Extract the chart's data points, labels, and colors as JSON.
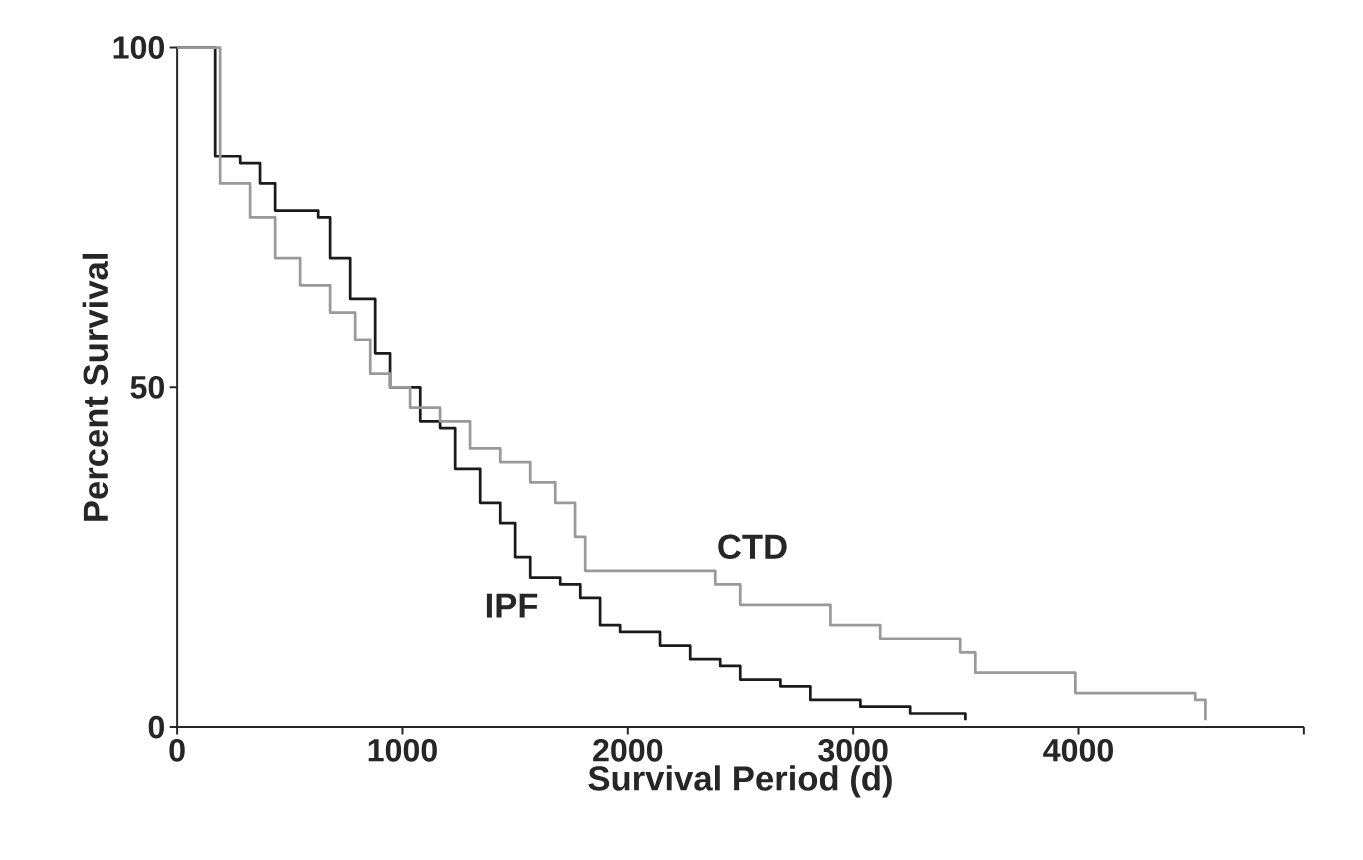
{
  "chart_data": {
    "type": "step",
    "xlabel": "Survival Period (d)",
    "ylabel": "Percent Survival",
    "xlim": [
      0,
      5000
    ],
    "ylim": [
      0,
      100
    ],
    "xticks": [
      0,
      1000,
      2000,
      3000,
      4000,
      {
        "value": 5000,
        "label": null
      }
    ],
    "yticks": [
      0,
      50,
      100
    ],
    "series": [
      {
        "name": "IPF",
        "color": "#1a1a1a",
        "x": [
          0,
          169,
          280,
          368,
          435,
          546,
          626,
          679,
          768,
          879,
          945,
          1079,
          1167,
          1234,
          1345,
          1434,
          1500,
          1567,
          1700,
          1789,
          1877,
          1966,
          2143,
          2277,
          2410,
          2499,
          2677,
          2810,
          3032,
          3253,
          3498
        ],
        "values": [
          100,
          84,
          83,
          80,
          76,
          76,
          75,
          69,
          63,
          55,
          50,
          45,
          44,
          38,
          33,
          30,
          25,
          22,
          21,
          19,
          15,
          14,
          12,
          10,
          9,
          7,
          6,
          4,
          3,
          2,
          1
        ]
      },
      {
        "name": "CTD",
        "color": "#999999",
        "x": [
          0,
          191,
          324,
          435,
          546,
          679,
          790,
          857,
          946,
          1034,
          1167,
          1300,
          1434,
          1567,
          1678,
          1766,
          1811,
          2321,
          2388,
          2499,
          2854,
          2899,
          3076,
          3120,
          3475,
          3542,
          3919,
          3986,
          4518,
          4563
        ],
        "values": [
          100,
          80,
          75,
          69,
          65,
          61,
          57,
          52,
          50,
          47,
          45,
          41,
          39,
          36,
          33,
          28,
          23,
          23,
          21,
          18,
          18,
          15,
          15,
          13,
          11,
          8,
          8,
          5,
          4,
          1
        ]
      }
    ]
  }
}
